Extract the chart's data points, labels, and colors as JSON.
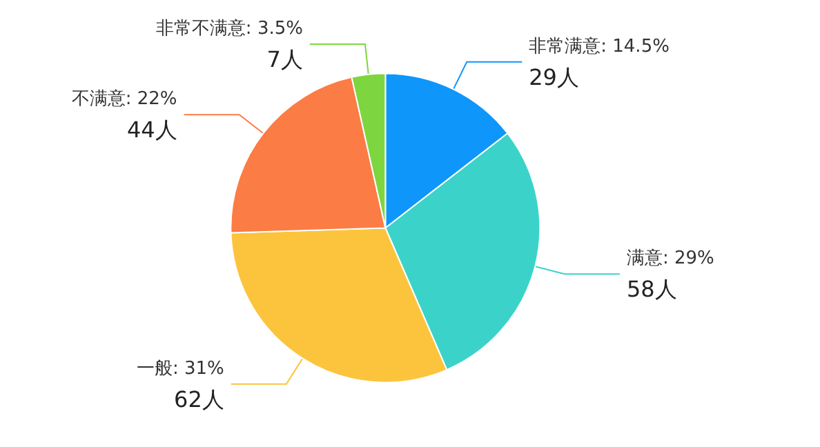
{
  "chart_data": {
    "type": "pie",
    "categories": [
      "非常满意",
      "满意",
      "一般",
      "不满意",
      "非常不满意"
    ],
    "values": [
      29,
      58,
      62,
      44,
      7
    ],
    "colors": [
      "#0f96fa",
      "#3bd3c9",
      "#fcc43c",
      "#fb7c45",
      "#7dd63f"
    ],
    "value_labels": [
      "14.5%\n29人",
      "29%\n58人",
      "31%\n62人",
      "22%\n44人",
      "3.5%\n7人"
    ],
    "legend": false
  }
}
